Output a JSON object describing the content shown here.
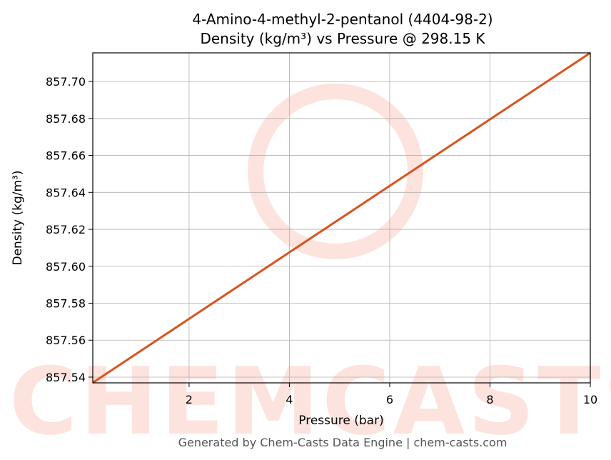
{
  "chart_data": {
    "type": "line",
    "title": "4-Amino-4-methyl-2-pentanol (4404-98-2)",
    "subtitle": "Density (kg/m³) vs Pressure @ 298.15 K",
    "xlabel": "Pressure (bar)",
    "ylabel": "Density (kg/m³)",
    "footer": "Generated by Chem-Casts Data Engine | chem-casts.com",
    "watermark": "CHEMCASTS",
    "x": [
      0.08,
      10
    ],
    "values": [
      857.537,
      857.7155
    ],
    "color": "#d9541e",
    "xlim": [
      0.08,
      10
    ],
    "ylim": [
      857.5369,
      857.7155
    ],
    "xticks": [
      2,
      4,
      6,
      8,
      10
    ],
    "yticks": [
      857.54,
      857.56,
      857.58,
      {
        "value": 857.6,
        "label": "857.60"
      },
      857.62,
      857.64,
      857.66,
      857.68,
      {
        "value": 857.7,
        "label": "857.70"
      }
    ],
    "grid": true
  }
}
